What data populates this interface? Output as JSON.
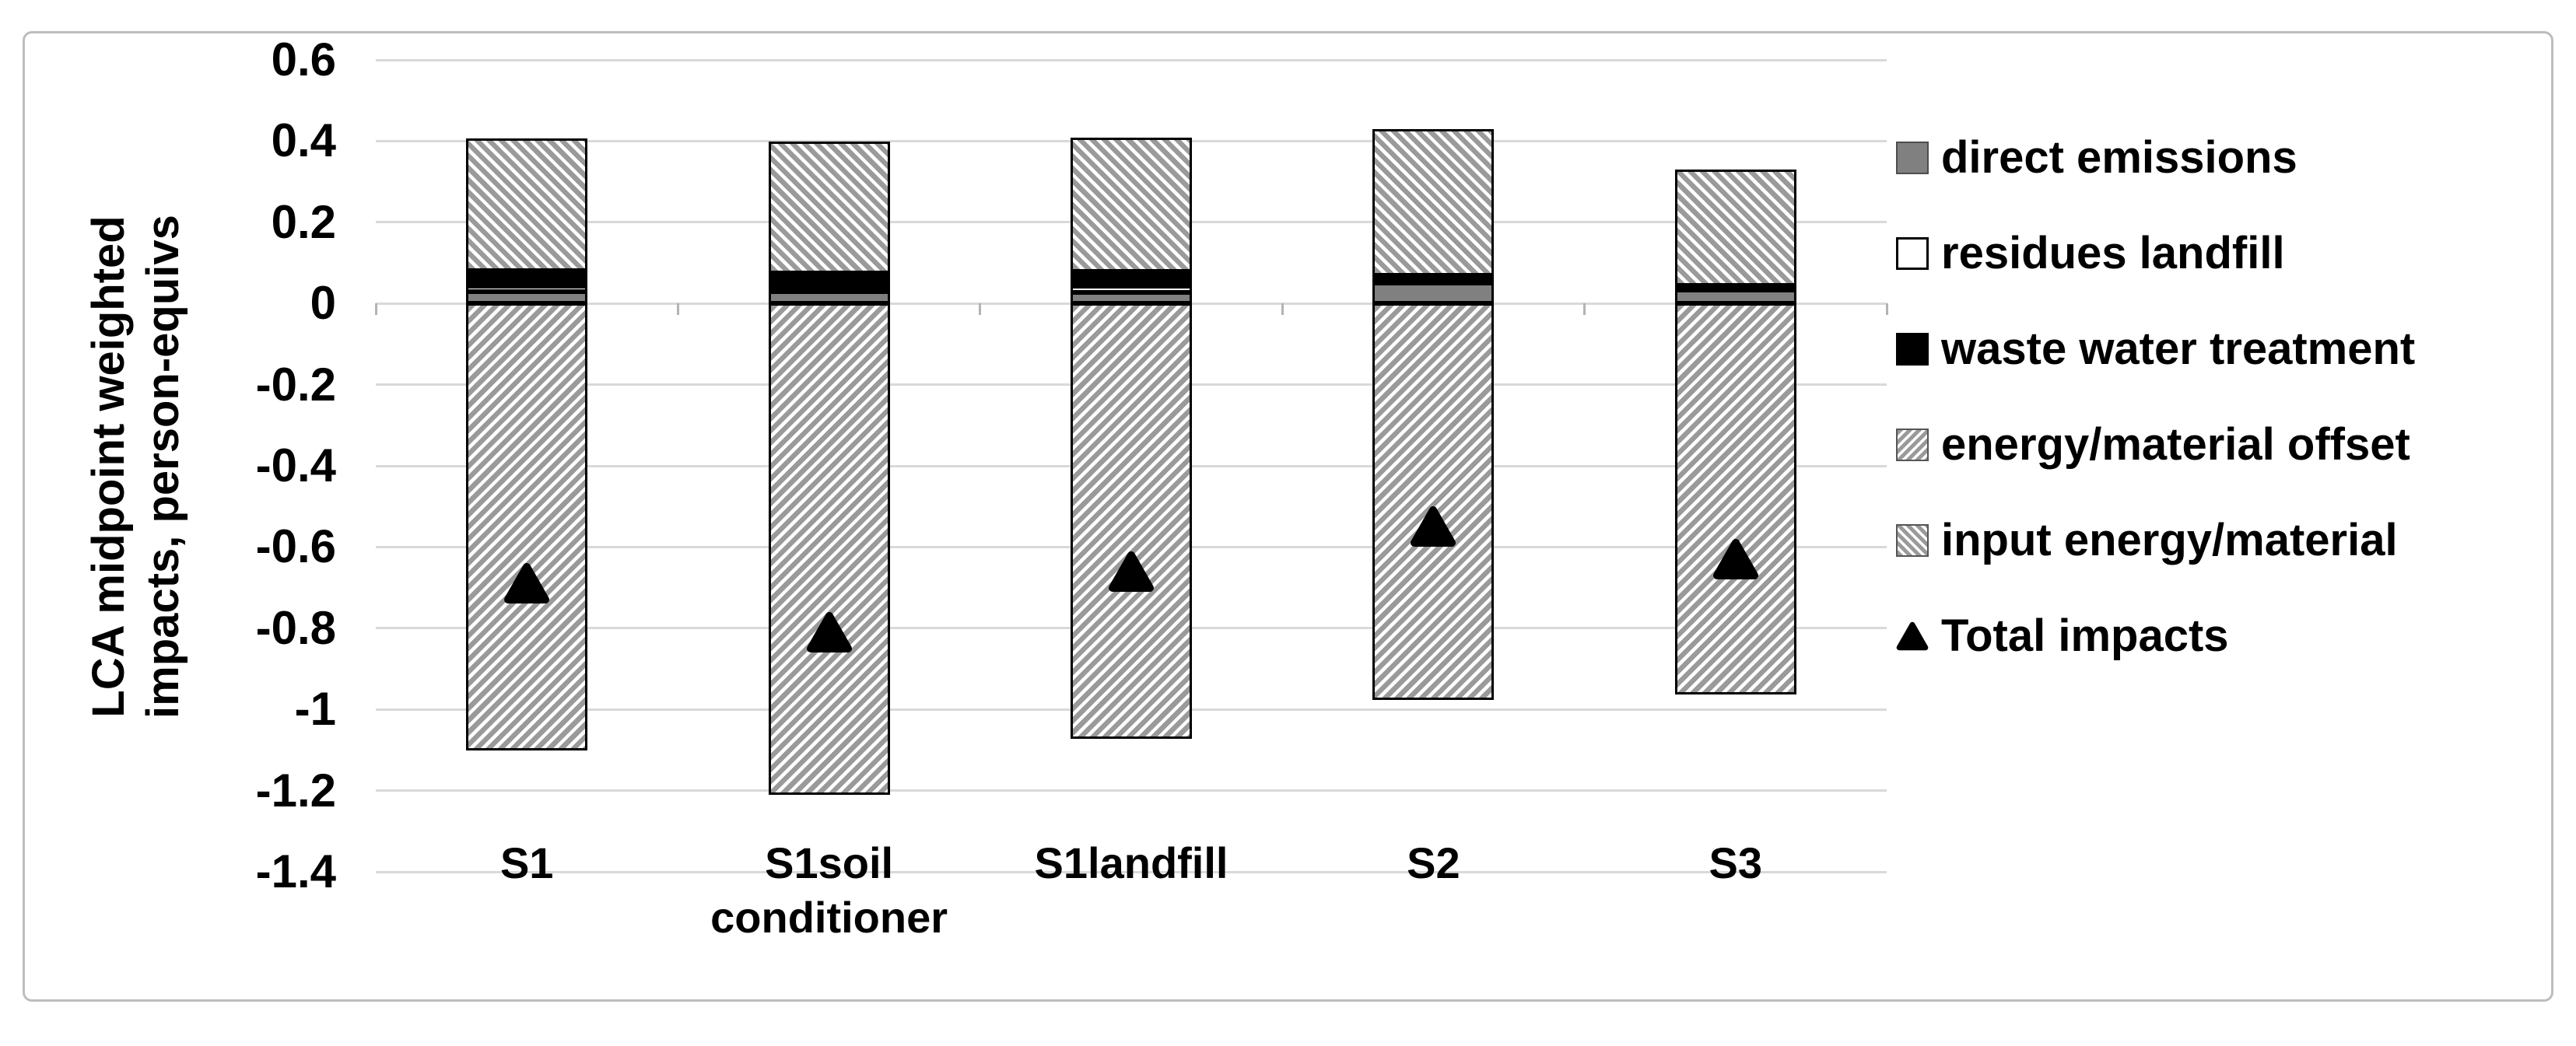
{
  "figure": {
    "background": "#ffffff",
    "border_color": "#bdbdbd"
  },
  "colors": {
    "direct_emissions": "#808080",
    "residues_landfill": "#ffffff",
    "waste_water_treatment": "#000000",
    "hatch_gray": "#9a9a9a",
    "hatch_stripe": "#ffffff",
    "gridline": "#d9d9d9",
    "marker": "#000000"
  },
  "chart_data": {
    "type": "bar",
    "stacked": true,
    "grid": true,
    "legend_position": "right",
    "ylabel": "LCA midpoint weighted impacts, person-equivs",
    "ylabel_lines": [
      "LCA midpoint weighted",
      "impacts, person-equivs"
    ],
    "ylim": [
      -1.4,
      0.6
    ],
    "ytick_labels": [
      "0.6",
      "0.4",
      "0.2",
      "0",
      "-0.2",
      "-0.4",
      "-0.6",
      "-0.8",
      "-1",
      "-1.2",
      "-1.4"
    ],
    "yticks": [
      0.6,
      0.4,
      0.2,
      0,
      -0.2,
      -0.4,
      -0.6,
      -0.8,
      -1,
      -1.2,
      -1.4
    ],
    "categories": [
      "S1",
      "S1soil conditioner",
      "S1landfill",
      "S2",
      "S3"
    ],
    "series": [
      {
        "name": "direct emissions",
        "style": "solid-gray",
        "values": [
          0.029,
          0.029,
          0.027,
          0.05,
          0.033
        ]
      },
      {
        "name": "residues landfill",
        "style": "solid-white",
        "values": [
          0.013,
          0.01,
          0.015,
          0.0,
          0.0
        ]
      },
      {
        "name": "waste water treatment",
        "style": "solid-black",
        "values": [
          0.038,
          0.036,
          0.036,
          0.019,
          0.012
        ]
      },
      {
        "name": "input energy/material",
        "style": "hatch-fwd",
        "values": [
          0.327,
          0.323,
          0.33,
          0.36,
          0.285
        ]
      },
      {
        "name": "energy/material offset",
        "style": "hatch-back",
        "values": [
          -1.101,
          -1.211,
          -1.073,
          -0.977,
          -0.963
        ]
      }
    ],
    "markers": {
      "name": "Total impacts",
      "values": [
        -0.69,
        -0.81,
        -0.66,
        -0.55,
        -0.63
      ]
    },
    "legend": [
      {
        "label": "direct emissions",
        "swatch": "solid-gray"
      },
      {
        "label": "residues landfill",
        "swatch": "solid-white"
      },
      {
        "label": "waste water treatment",
        "swatch": "solid-black"
      },
      {
        "label": "energy/material offset",
        "swatch": "hatch-back"
      },
      {
        "label": "input energy/material",
        "swatch": "hatch-fwd"
      },
      {
        "label": "Total impacts",
        "swatch": "triangle"
      }
    ]
  }
}
